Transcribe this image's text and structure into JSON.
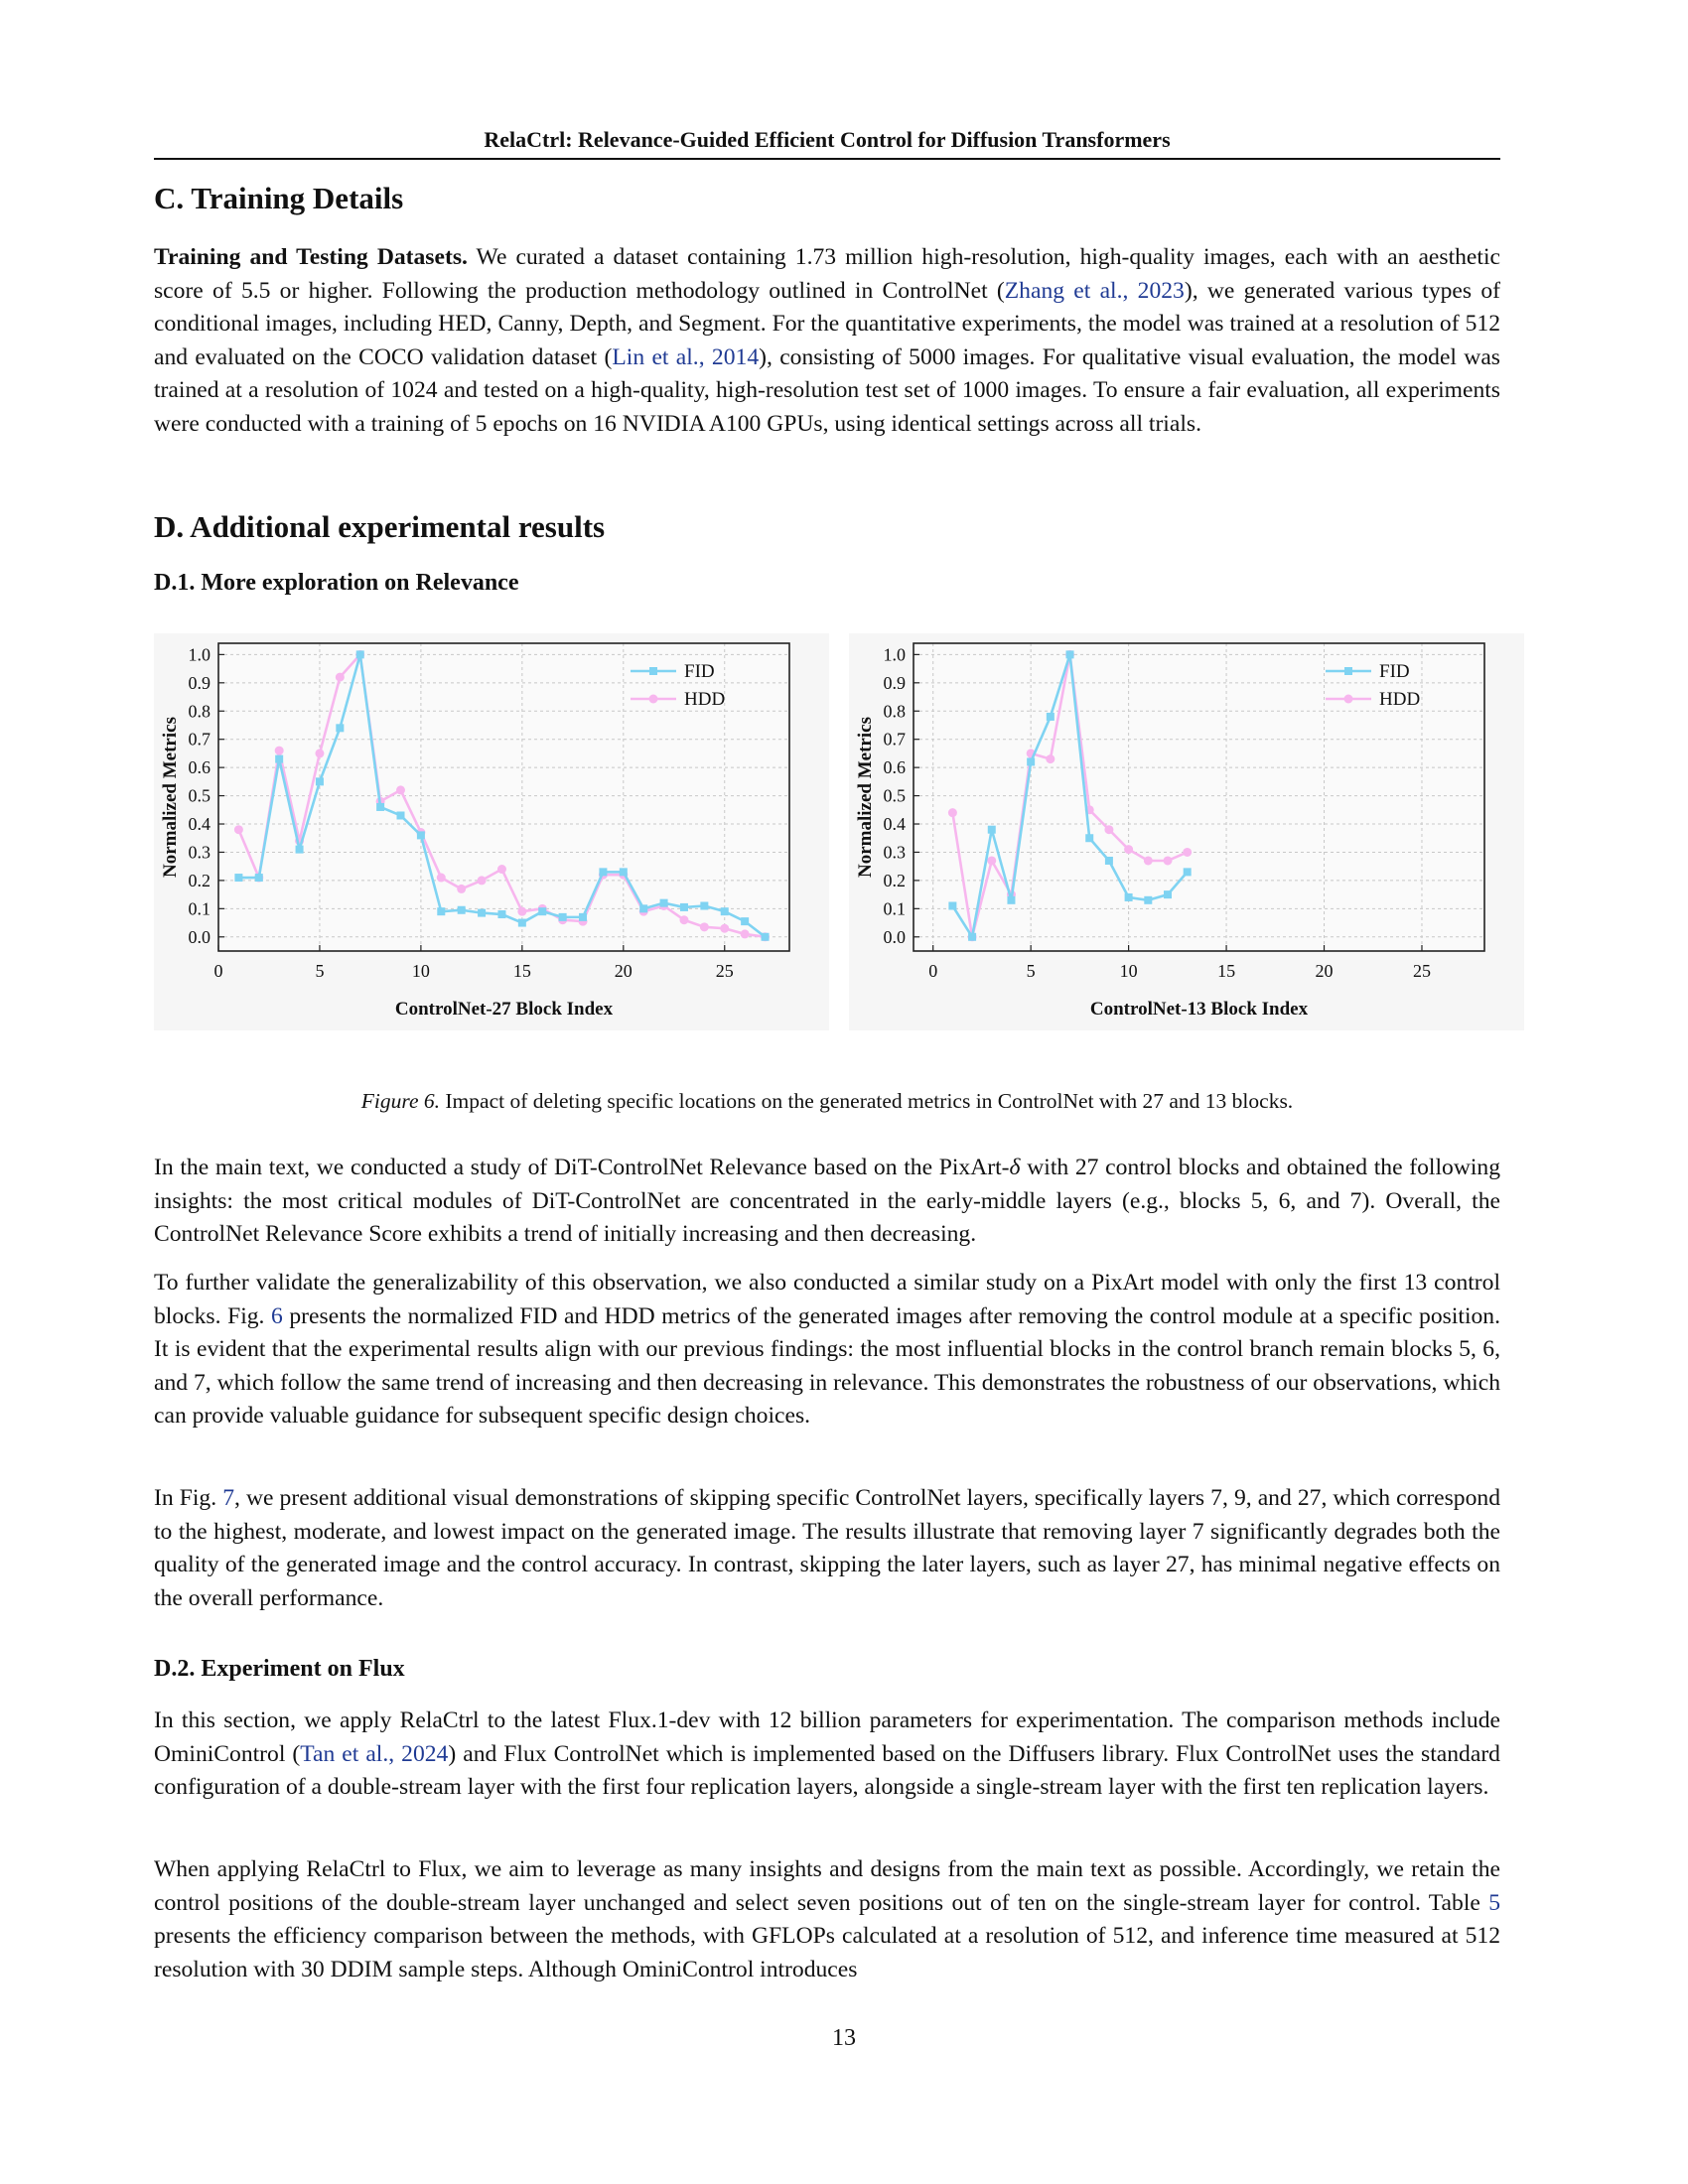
{
  "header": {
    "running_title": "RelaCtrl: Relevance-Guided Efficient Control for Diffusion Transformers"
  },
  "section_c": {
    "heading": "C. Training Details",
    "para1": {
      "lead": "Training and Testing Datasets.",
      "t1": " We curated a dataset containing 1.73 million high-resolution, high-quality images, each with an aesthetic score of 5.5 or higher.  Following the production methodology outlined in ControlNet (",
      "c1": "Zhang et al., 2023",
      "t2": "), we generated various types of conditional images, including HED, Canny, Depth, and Segment. For the quantitative experiments, the model was trained at a resolution of 512 and evaluated on the COCO validation dataset (",
      "c2": "Lin et al., 2014",
      "t3": "), consisting of 5000 images. For qualitative visual evaluation, the model was trained at a resolution of 1024 and tested on a high-quality, high-resolution test set of 1000 images. To ensure a fair evaluation, all experiments were conducted with a training of 5 epochs on 16 NVIDIA A100 GPUs, using identical settings across all trials."
    }
  },
  "section_d": {
    "heading": "D. Additional experimental results",
    "sub1": "D.1. More exploration on Relevance",
    "figure": {
      "label": "Figure 6.",
      "caption": " Impact of deleting specific locations on the generated metrics in ControlNet with 27 and 13 blocks."
    },
    "p1": {
      "t1": "In the main text, we conducted a study of DiT-ControlNet Relevance based on the PixArt-",
      "delta": "δ",
      "t2": " with 27 control blocks and obtained the following insights: the most critical modules of DiT-ControlNet are concentrated in the early-middle layers (e.g., blocks 5, 6, and 7). Overall, the ControlNet Relevance Score exhibits a trend of initially increasing and then decreasing."
    },
    "p2": {
      "t1": "To further validate the generalizability of this observation, we also conducted a similar study on a PixArt model with only the first 13 control blocks. Fig. ",
      "ref": "6",
      "t2": " presents the normalized FID and HDD metrics of the generated images after removing the control module at a specific position. It is evident that the experimental results align with our previous findings: the most influential blocks in the control branch remain blocks 5, 6, and 7, which follow the same trend of increasing and then decreasing in relevance. This demonstrates the robustness of our observations, which can provide valuable guidance for subsequent specific design choices."
    },
    "p3": {
      "t1": "In Fig. ",
      "ref": "7",
      "t2": ", we present additional visual demonstrations of skipping specific ControlNet layers, specifically layers 7, 9, and 27, which correspond to the highest, moderate, and lowest impact on the generated image. The results illustrate that removing layer 7 significantly degrades both the quality of the generated image and the control accuracy. In contrast, skipping the later layers, such as layer 27, has minimal negative effects on the overall performance."
    },
    "sub2": "D.2. Experiment on Flux",
    "p4": {
      "t1": "In this section, we apply RelaCtrl to the latest Flux.1-dev with 12 billion parameters for experimentation. The comparison methods include OminiControl (",
      "c1": "Tan et al., 2024",
      "t2": ") and Flux ControlNet which is implemented based on the Diffusers library. Flux ControlNet uses the standard configuration of a double-stream layer with the first four replication layers, alongside a single-stream layer with the first ten replication layers."
    },
    "p5": {
      "t1": "When applying RelaCtrl to Flux, we aim to leverage as many insights and designs from the main text as possible. Accordingly, we retain the control positions of the double-stream layer unchanged and select seven positions out of ten on the single-stream layer for control. Table ",
      "ref": "5",
      "t2": " presents the efficiency comparison between the methods, with GFLOPs calculated at a resolution of 512, and inference time measured at 512 resolution with 30 DDIM sample steps. Although OminiControl introduces"
    }
  },
  "page_number": "13",
  "colors": {
    "fid": "#7fd3f2",
    "hdd": "#f7b6ee",
    "citation": "#1f3a93"
  },
  "chart_data": [
    {
      "type": "line",
      "xlabel": "ControlNet-27 Block Index",
      "ylabel": "Normalized Metrics",
      "xlim": [
        0,
        28.2
      ],
      "ylim": [
        -0.05,
        1.04
      ],
      "xticks": [
        0,
        5,
        10,
        15,
        20,
        25
      ],
      "yticks": [
        0.0,
        0.1,
        0.2,
        0.3,
        0.4,
        0.5,
        0.6,
        0.7,
        0.8,
        0.9,
        1.0
      ],
      "grid": true,
      "legend": "top-right",
      "series": [
        {
          "name": "FID",
          "marker": "square",
          "x": [
            1,
            2,
            3,
            4,
            5,
            6,
            7,
            8,
            9,
            10,
            11,
            12,
            13,
            14,
            15,
            16,
            17,
            18,
            19,
            20,
            21,
            22,
            23,
            24,
            25,
            26,
            27
          ],
          "values": [
            0.21,
            0.21,
            0.63,
            0.31,
            0.55,
            0.74,
            1.0,
            0.46,
            0.43,
            0.36,
            0.09,
            0.095,
            0.085,
            0.08,
            0.05,
            0.09,
            0.07,
            0.07,
            0.23,
            0.23,
            0.1,
            0.12,
            0.105,
            0.11,
            0.09,
            0.055,
            0.0
          ]
        },
        {
          "name": "HDD",
          "marker": "circle",
          "x": [
            1,
            2,
            3,
            4,
            5,
            6,
            7,
            8,
            9,
            10,
            11,
            12,
            13,
            14,
            15,
            16,
            17,
            18,
            19,
            20,
            21,
            22,
            23,
            24,
            25,
            26,
            27
          ],
          "values": [
            0.38,
            0.21,
            0.66,
            0.34,
            0.65,
            0.92,
            1.0,
            0.48,
            0.52,
            0.37,
            0.21,
            0.17,
            0.2,
            0.24,
            0.09,
            0.1,
            0.06,
            0.055,
            0.22,
            0.22,
            0.09,
            0.11,
            0.06,
            0.035,
            0.03,
            0.01,
            0.0
          ]
        }
      ]
    },
    {
      "type": "line",
      "xlabel": "ControlNet-13 Block Index",
      "ylabel": "Normalized Metrics",
      "xlim": [
        -1,
        28.2
      ],
      "ylim": [
        -0.05,
        1.04
      ],
      "xticks": [
        0,
        5,
        10,
        15,
        20,
        25
      ],
      "yticks": [
        0.0,
        0.1,
        0.2,
        0.3,
        0.4,
        0.5,
        0.6,
        0.7,
        0.8,
        0.9,
        1.0
      ],
      "grid": true,
      "legend": "top-right",
      "series": [
        {
          "name": "FID",
          "marker": "square",
          "x": [
            1,
            2,
            3,
            4,
            5,
            6,
            7,
            8,
            9,
            10,
            11,
            12,
            13
          ],
          "values": [
            0.11,
            0.0,
            0.38,
            0.13,
            0.62,
            0.78,
            1.0,
            0.35,
            0.27,
            0.14,
            0.13,
            0.15,
            0.23
          ]
        },
        {
          "name": "HDD",
          "marker": "circle",
          "x": [
            1,
            2,
            3,
            4,
            5,
            6,
            7,
            8,
            9,
            10,
            11,
            12,
            13
          ],
          "values": [
            0.44,
            0.0,
            0.27,
            0.15,
            0.65,
            0.63,
            1.0,
            0.45,
            0.38,
            0.31,
            0.27,
            0.27,
            0.3
          ]
        }
      ]
    }
  ]
}
